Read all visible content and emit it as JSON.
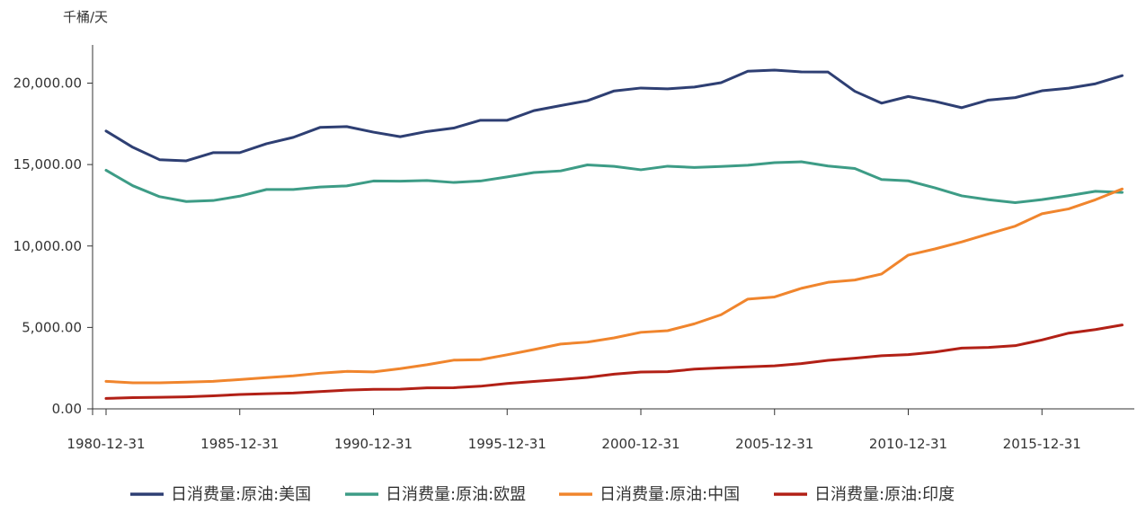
{
  "chart_data": {
    "type": "line",
    "unit_label": "千桶/天",
    "x": [
      "1980",
      "1981",
      "1982",
      "1983",
      "1984",
      "1985",
      "1986",
      "1987",
      "1988",
      "1989",
      "1990",
      "1991",
      "1992",
      "1993",
      "1994",
      "1995",
      "1996",
      "1997",
      "1998",
      "1999",
      "2000",
      "2001",
      "2002",
      "2003",
      "2004",
      "2005",
      "2006",
      "2007",
      "2008",
      "2009",
      "2010",
      "2011",
      "2012",
      "2013",
      "2014",
      "2015",
      "2016",
      "2017",
      "2018"
    ],
    "x_tick_labels": [
      "1980-12-31",
      "1985-12-31",
      "1990-12-31",
      "1995-12-31",
      "2000-12-31",
      "2005-12-31",
      "2010-12-31",
      "2015-12-31"
    ],
    "y_tick_labels": [
      "0.00",
      "5,000.00",
      "10,000.00",
      "15,000.00",
      "20,000.00"
    ],
    "ylim": [
      0,
      22500
    ],
    "grid": false,
    "legend_position": "bottom",
    "series": [
      {
        "name": "日消费量:原油:美国",
        "color": "#2e3f73",
        "values": [
          17060,
          16060,
          15300,
          15230,
          15730,
          15730,
          16280,
          16670,
          17280,
          17330,
          16990,
          16710,
          17030,
          17240,
          17720,
          17720,
          18310,
          18620,
          18920,
          19520,
          19700,
          19650,
          19760,
          20030,
          20730,
          20800,
          20690,
          20680,
          19500,
          18770,
          19180,
          18880,
          18490,
          18960,
          19110,
          19530,
          19690,
          19960,
          20460
        ]
      },
      {
        "name": "日消费量:原油:欧盟",
        "color": "#3d9c86",
        "values": [
          14650,
          13700,
          13030,
          12730,
          12790,
          13060,
          13470,
          13470,
          13620,
          13690,
          13990,
          13980,
          14020,
          13900,
          13990,
          14240,
          14510,
          14610,
          14980,
          14890,
          14680,
          14900,
          14820,
          14880,
          14960,
          15120,
          15170,
          14910,
          14760,
          14080,
          14000,
          13570,
          13080,
          12840,
          12660,
          12850,
          13090,
          13360,
          13290
        ]
      },
      {
        "name": "日消费量:原油:中国",
        "color": "#f0852d",
        "values": [
          1690,
          1600,
          1600,
          1640,
          1690,
          1800,
          1920,
          2030,
          2190,
          2300,
          2270,
          2470,
          2710,
          2990,
          3020,
          3320,
          3640,
          3980,
          4100,
          4360,
          4700,
          4800,
          5220,
          5780,
          6740,
          6870,
          7400,
          7770,
          7910,
          8280,
          9440,
          9820,
          10250,
          10740,
          11220,
          11980,
          12280,
          12840,
          13500
        ]
      },
      {
        "name": "日消费量:原油:印度",
        "color": "#b22016",
        "values": [
          640,
          690,
          710,
          740,
          800,
          880,
          930,
          970,
          1060,
          1150,
          1200,
          1210,
          1290,
          1300,
          1390,
          1560,
          1680,
          1800,
          1930,
          2130,
          2260,
          2280,
          2440,
          2520,
          2580,
          2640,
          2780,
          2980,
          3110,
          3260,
          3330,
          3490,
          3730,
          3770,
          3880,
          4230,
          4650,
          4870,
          5150
        ]
      }
    ]
  }
}
